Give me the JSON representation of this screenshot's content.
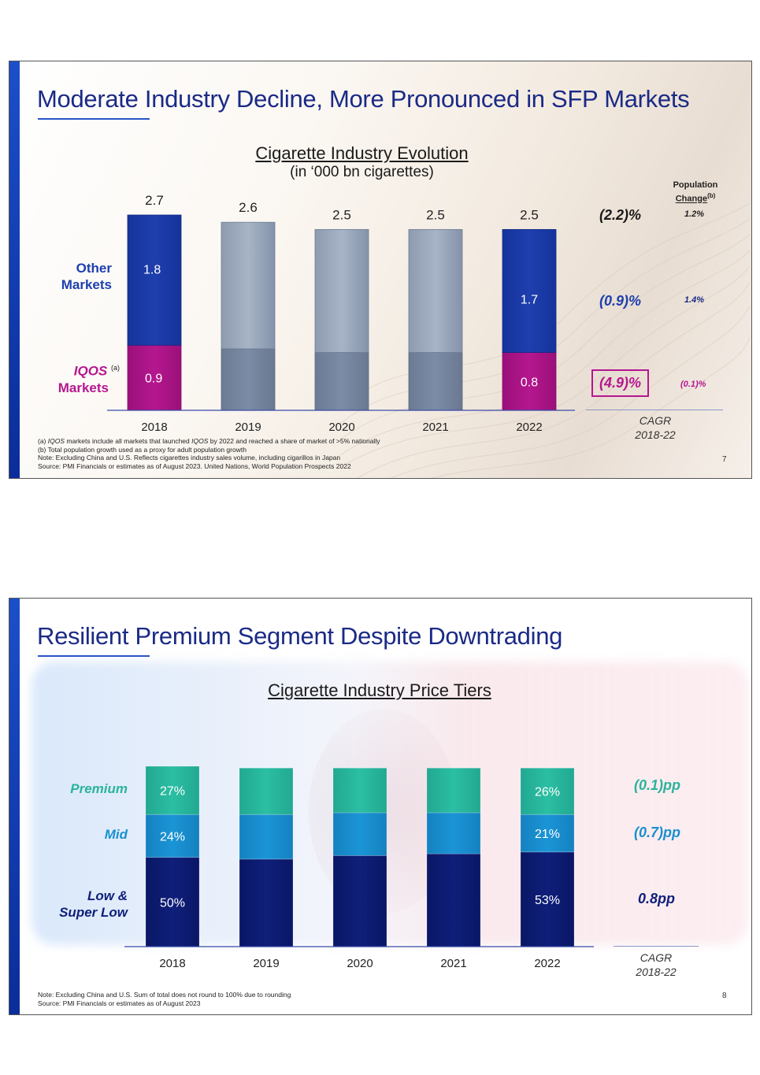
{
  "slide1": {
    "title": "Moderate Industry Decline, More Pronounced in SFP Markets",
    "chart_title": "Cigarette Industry Evolution",
    "chart_subtitle": "(in ‘000 bn cigarettes)",
    "label_other": "Other Markets",
    "label_iqos": "IQOS",
    "label_iqos_sup": "(a)",
    "label_markets": "Markets",
    "population_title": "Population Change",
    "population_sup": "(b)",
    "cagr_total": "(2.2)%",
    "cagr_other": "(0.9)%",
    "cagr_iqos": "(4.9)%",
    "pop_total": "1.2%",
    "pop_other": "1.4%",
    "pop_iqos": "(0.1)%",
    "cagr_caption_1": "CAGR",
    "cagr_caption_2": "2018-22",
    "footnote_a_prefix": "(a) ",
    "footnote_a_italic1": "IQOS",
    "footnote_a_mid": " markets include all markets that launched ",
    "footnote_a_italic2": "IQOS",
    "footnote_a_end": " by 2022 and reached a share of market of >5% nationally",
    "footnote_b": "(b) Total population growth used as a proxy for adult population growth",
    "footnote_note": "Note: Excluding China and U.S. Reflects cigarettes industry sales volume, including cigarillos in Japan",
    "footnote_source": "Source: PMI Financials or estimates as of August 2023. United Nations, World Population Prospects 2022",
    "page_number": "7",
    "colors": {
      "other": "#1e3fae",
      "iqos": "#b5178f",
      "grey_top": "#a7b4c6",
      "grey_bottom": "#7c8ca6",
      "title": "#1a2a86"
    }
  },
  "slide2": {
    "title": "Resilient Premium Segment Despite Downtrading",
    "chart_title": "Cigarette Industry Price Tiers",
    "label_premium": "Premium",
    "label_mid": "Mid",
    "label_low_1": "Low &",
    "label_low_2": "Super Low",
    "cagr_premium": "(0.1)pp",
    "cagr_mid": "(0.7)pp",
    "cagr_low": "0.8pp",
    "cagr_caption_1": "CAGR",
    "cagr_caption_2": "2018-22",
    "footnote_note": "Note: Excluding China and U.S. Sum of total does not round to 100% due to rounding",
    "footnote_source": "Source: PMI Financials or estimates as of August 2023",
    "page_number": "8",
    "colors": {
      "premium": "#2bbfa3",
      "mid": "#1b95d6",
      "low": "#0f1f7a",
      "premium_label": "#2bb39c",
      "mid_label": "#1a8fd0",
      "low_label": "#0f1f7a"
    }
  },
  "chart_data": [
    {
      "type": "bar",
      "stacked": true,
      "title": "Cigarette Industry Evolution",
      "subtitle": "(in ‘000 bn cigarettes)",
      "categories": [
        "2018",
        "2019",
        "2020",
        "2021",
        "2022"
      ],
      "totals": [
        2.7,
        2.6,
        2.5,
        2.5,
        2.5
      ],
      "total_labels": [
        "2.7",
        "2.6",
        "2.5",
        "2.5",
        "2.5"
      ],
      "series": [
        {
          "name": "IQOS Markets",
          "values": [
            0.9,
            0.85,
            0.8,
            0.8,
            0.8
          ],
          "labels": [
            "0.9",
            "",
            "",
            "",
            "0.8"
          ]
        },
        {
          "name": "Other Markets",
          "values": [
            1.8,
            1.75,
            1.7,
            1.7,
            1.7
          ],
          "labels": [
            "1.8",
            "",
            "",
            "",
            "1.7"
          ]
        }
      ],
      "highlighted": [
        true,
        false,
        false,
        false,
        true
      ],
      "ylim": [
        0,
        2.7
      ]
    },
    {
      "type": "bar",
      "stacked": true,
      "title": "Cigarette Industry Price Tiers",
      "categories": [
        "2018",
        "2019",
        "2020",
        "2021",
        "2022"
      ],
      "series": [
        {
          "name": "Low & Super Low",
          "values": [
            50,
            49,
            51,
            52,
            53
          ],
          "labels": [
            "50%",
            "",
            "",
            "",
            "53%"
          ]
        },
        {
          "name": "Mid",
          "values": [
            24,
            25,
            24,
            23,
            21
          ],
          "labels": [
            "24%",
            "",
            "",
            "",
            "21%"
          ]
        },
        {
          "name": "Premium",
          "values": [
            27,
            26,
            25,
            25,
            26
          ],
          "labels": [
            "27%",
            "",
            "",
            "",
            "26%"
          ]
        }
      ],
      "ylim": [
        0,
        101
      ]
    }
  ]
}
